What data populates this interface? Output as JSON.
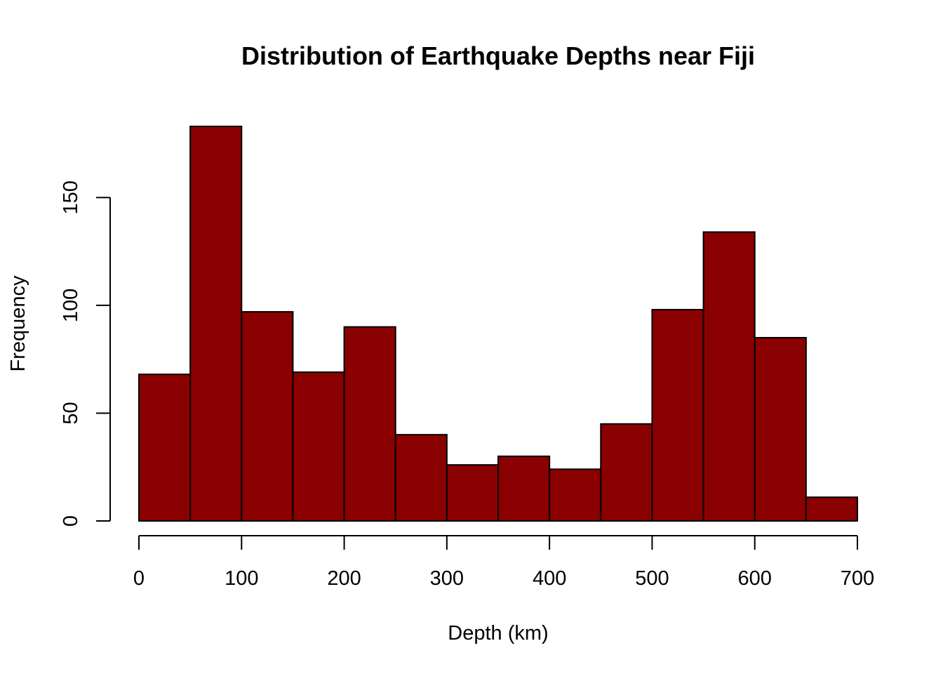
{
  "chart_data": {
    "type": "bar",
    "title": "Distribution of Earthquake Depths near Fiji",
    "xlabel": "Depth (km)",
    "ylabel": "Frequency",
    "bin_edges": [
      0,
      50,
      100,
      150,
      200,
      250,
      300,
      350,
      400,
      450,
      500,
      550,
      600,
      650,
      700
    ],
    "values": [
      68,
      183,
      97,
      69,
      90,
      40,
      26,
      30,
      24,
      45,
      98,
      134,
      85,
      11
    ],
    "xlim": [
      0,
      700
    ],
    "ylim": [
      0,
      183
    ],
    "xticks": [
      0,
      100,
      200,
      300,
      400,
      500,
      600,
      700
    ],
    "yticks": [
      0,
      50,
      100,
      150
    ],
    "bar_color": "#8B0000",
    "grid": false
  }
}
